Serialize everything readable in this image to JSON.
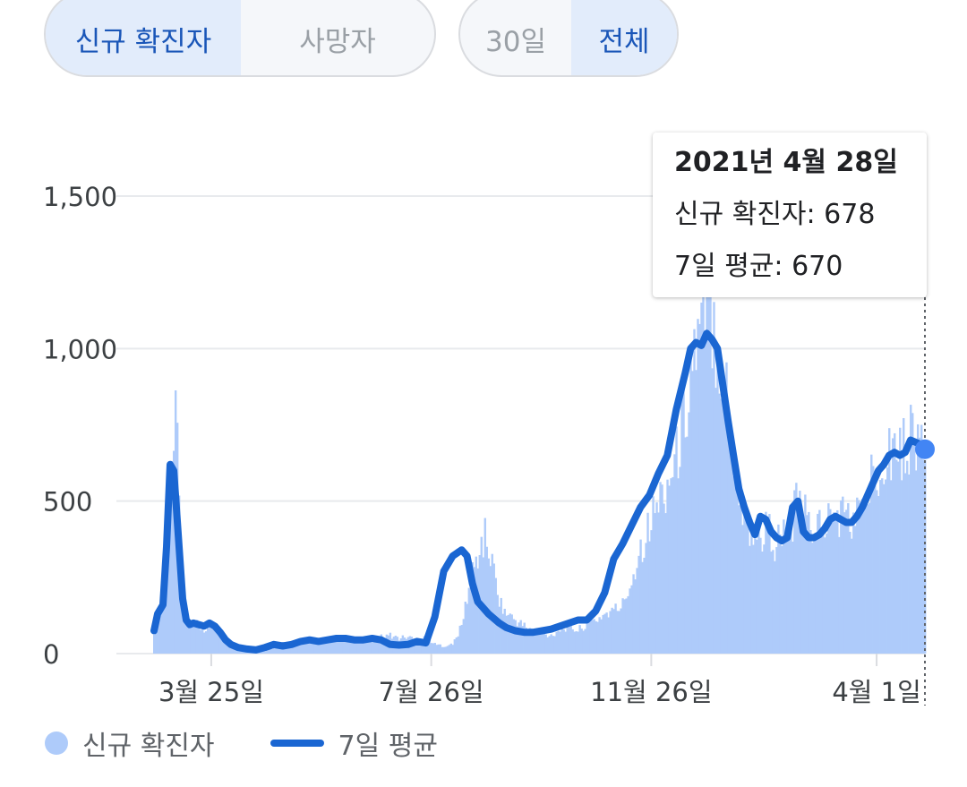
{
  "toggles": {
    "metric": [
      {
        "label": "신규 확진자",
        "active": true
      },
      {
        "label": "사망자",
        "active": false
      }
    ],
    "range": [
      {
        "label": "30일",
        "active": false
      },
      {
        "label": "전체",
        "active": true
      }
    ]
  },
  "tooltip": {
    "date": "2021년 4월 28일",
    "new_cases": "신규 확진자: 678",
    "avg": "7일 평균: 670"
  },
  "legend": {
    "bars_label": "신규 확진자",
    "line_label": "7일 평균"
  },
  "colors": {
    "bars": "#aecbfa",
    "line": "#1a66d2",
    "active_toggle_bg": "#e2ecfb",
    "active_toggle_text": "#1a56b8",
    "marker": "#4285f4"
  },
  "chart_data": {
    "type": "bar",
    "title": "",
    "xlabel": "",
    "ylabel": "",
    "ylim": [
      0,
      1500
    ],
    "y_ticks": [
      "0",
      "500",
      "1,000",
      "1,500"
    ],
    "x_tick_labels": [
      "3월 25일",
      "7월 26일",
      "11월 26일",
      "4월 1일"
    ],
    "x_ticks_days": [
      55,
      178,
      301,
      427
    ],
    "x_range_days": [
      23,
      454
    ],
    "grid": true,
    "legend_position": "bottom",
    "series": [
      {
        "name": "신규 확진자",
        "type": "bar",
        "x_days": [
          23,
          26,
          29,
          31,
          33,
          35,
          37,
          39,
          41,
          43,
          45,
          47,
          49,
          51,
          53,
          55,
          57,
          59,
          61,
          63,
          65,
          67,
          69,
          71,
          75,
          80,
          85,
          90,
          95,
          100,
          105,
          110,
          115,
          120,
          125,
          130,
          135,
          140,
          145,
          150,
          155,
          160,
          165,
          170,
          175,
          180,
          185,
          190,
          195,
          200,
          205,
          208,
          211,
          214,
          217,
          220,
          225,
          230,
          235,
          240,
          245,
          250,
          255,
          260,
          265,
          270,
          275,
          280,
          285,
          290,
          295,
          300,
          305,
          310,
          315,
          320,
          325,
          330,
          334,
          338,
          342,
          346,
          350,
          354,
          358,
          362,
          366,
          370,
          374,
          378,
          382,
          386,
          390,
          394,
          398,
          402,
          406,
          410,
          414,
          418,
          422,
          426,
          430,
          434,
          438,
          442,
          446,
          450,
          454
        ],
        "values": [
          60,
          150,
          220,
          320,
          650,
          840,
          450,
          200,
          120,
          100,
          95,
          110,
          90,
          80,
          85,
          100,
          90,
          70,
          60,
          45,
          30,
          25,
          20,
          18,
          12,
          10,
          8,
          20,
          35,
          25,
          30,
          40,
          45,
          40,
          50,
          55,
          45,
          50,
          40,
          55,
          60,
          50,
          55,
          45,
          60,
          30,
          25,
          30,
          90,
          250,
          340,
          380,
          320,
          240,
          160,
          130,
          110,
          90,
          75,
          65,
          60,
          80,
          90,
          75,
          100,
          110,
          130,
          140,
          160,
          240,
          350,
          420,
          500,
          560,
          640,
          800,
          1000,
          1040,
          1150,
          1020,
          900,
          700,
          520,
          420,
          400,
          380,
          420,
          360,
          380,
          390,
          480,
          460,
          400,
          420,
          430,
          440,
          460,
          450,
          430,
          470,
          520,
          600,
          650,
          680,
          690,
          660,
          730,
          700,
          678
        ]
      },
      {
        "name": "7일 평균",
        "type": "line",
        "x_days": [
          23,
          25,
          28,
          30,
          32,
          34,
          35,
          37,
          39,
          41,
          43,
          45,
          48,
          51,
          54,
          57,
          60,
          63,
          66,
          70,
          75,
          80,
          85,
          90,
          95,
          100,
          105,
          110,
          115,
          120,
          125,
          130,
          135,
          140,
          145,
          150,
          155,
          160,
          165,
          170,
          175,
          180,
          185,
          190,
          195,
          198,
          201,
          204,
          207,
          210,
          213,
          216,
          220,
          225,
          230,
          235,
          240,
          245,
          250,
          255,
          260,
          265,
          270,
          275,
          280,
          285,
          290,
          295,
          300,
          305,
          310,
          315,
          320,
          323,
          326,
          329,
          332,
          335,
          338,
          341,
          344,
          347,
          350,
          353,
          356,
          359,
          362,
          365,
          368,
          371,
          374,
          377,
          380,
          383,
          386,
          389,
          392,
          395,
          398,
          401,
          404,
          407,
          410,
          413,
          416,
          419,
          422,
          425,
          428,
          431,
          434,
          437,
          440,
          443,
          446,
          450,
          454
        ],
        "values": [
          75,
          130,
          160,
          350,
          620,
          600,
          520,
          350,
          180,
          110,
          95,
          100,
          95,
          90,
          100,
          90,
          70,
          45,
          30,
          20,
          15,
          12,
          20,
          30,
          25,
          30,
          40,
          45,
          40,
          45,
          50,
          50,
          45,
          45,
          50,
          45,
          30,
          28,
          30,
          40,
          35,
          120,
          270,
          320,
          340,
          320,
          230,
          170,
          150,
          130,
          115,
          100,
          85,
          75,
          70,
          70,
          75,
          80,
          90,
          100,
          110,
          110,
          140,
          200,
          310,
          360,
          420,
          480,
          520,
          590,
          650,
          800,
          920,
          1000,
          1020,
          1010,
          1050,
          1030,
          1000,
          880,
          760,
          650,
          540,
          480,
          430,
          390,
          450,
          440,
          400,
          380,
          370,
          380,
          480,
          500,
          400,
          380,
          380,
          390,
          410,
          440,
          450,
          440,
          430,
          430,
          450,
          480,
          520,
          560,
          600,
          620,
          650,
          660,
          650,
          660,
          700,
          690,
          670
        ]
      }
    ],
    "highlight": {
      "x_day": 454,
      "value": 670
    }
  }
}
